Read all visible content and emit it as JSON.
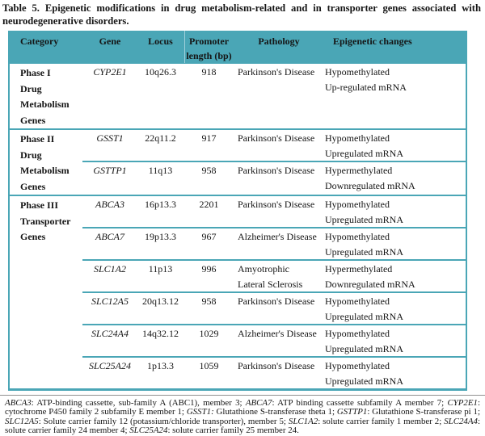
{
  "title": "Table 5. Epigenetic modifications in drug metabolism-related and in transporter genes associated with neurodegenerative disorders.",
  "table": {
    "header": {
      "category": "Category",
      "gene": "Gene",
      "locus": "Locus",
      "promoter_line1": "Promoter",
      "promoter_line2": "length (bp)",
      "pathology": "Pathology",
      "epigenetic": "Epigenetic changes"
    },
    "groups": [
      {
        "category_lines": [
          "Phase I",
          "Drug Metabolism",
          "Genes"
        ],
        "rows": [
          {
            "gene": "CYP2E1",
            "locus": "10q26.3",
            "promoter": "918",
            "pathology_lines": [
              "Parkinson's Disease"
            ],
            "changes_lines": [
              "Hypomethylated",
              "Up-regulated mRNA"
            ]
          }
        ]
      },
      {
        "category_lines": [
          "Phase II",
          "Drug Metabolism",
          "Genes"
        ],
        "rows": [
          {
            "gene": "GSST1",
            "locus": "22q11.2",
            "promoter": "917",
            "pathology_lines": [
              "Parkinson's Disease"
            ],
            "changes_lines": [
              "Hypomethylated",
              "Upregulated mRNA"
            ]
          },
          {
            "gene": "GSTTP1",
            "locus": "11q13",
            "promoter": "958",
            "pathology_lines": [
              "Parkinson's Disease"
            ],
            "changes_lines": [
              "Hypermethylated",
              "Downregulated mRNA"
            ]
          }
        ]
      },
      {
        "category_lines": [
          "Phase III",
          "Transporter",
          "Genes"
        ],
        "rows": [
          {
            "gene": "ABCA3",
            "locus": "16p13.3",
            "promoter": "2201",
            "pathology_lines": [
              "Parkinson's Disease"
            ],
            "changes_lines": [
              "Hypomethylated",
              "Upregulated mRNA"
            ]
          },
          {
            "gene": "ABCA7",
            "locus": "19p13.3",
            "promoter": "967",
            "pathology_lines": [
              "Alzheimer's Disease"
            ],
            "changes_lines": [
              "Hypomethylated",
              "Upregulated mRNA"
            ]
          },
          {
            "gene": "SLC1A2",
            "locus": "11p13",
            "promoter": "996",
            "pathology_lines": [
              "Amyotrophic",
              "Lateral Sclerosis"
            ],
            "changes_lines": [
              "Hypermethylated",
              "Downregulated mRNA"
            ]
          },
          {
            "gene": "SLC12A5",
            "locus": "20q13.12",
            "promoter": "958",
            "pathology_lines": [
              "Parkinson's Disease"
            ],
            "changes_lines": [
              "Hypomethylated",
              "Upregulated mRNA"
            ]
          },
          {
            "gene": "SLC24A4",
            "locus": "14q32.12",
            "promoter": "1029",
            "pathology_lines": [
              "Alzheimer's Disease"
            ],
            "changes_lines": [
              "Hypomethylated",
              "Upregulated mRNA"
            ]
          },
          {
            "gene": "SLC25A24",
            "locus": "1p13.3",
            "promoter": "1059",
            "pathology_lines": [
              "Parkinson's Disease"
            ],
            "changes_lines": [
              "Hypomethylated",
              "Upregulated mRNA"
            ]
          }
        ]
      }
    ]
  },
  "footnote": {
    "segments": [
      {
        "text": "ABCA3",
        "italic": true
      },
      {
        "text": ": ATP-binding cassette, sub-family A (ABC1), member 3; ",
        "italic": false
      },
      {
        "text": "ABCA7",
        "italic": true
      },
      {
        "text": ": ATP binding cassette subfamily A member 7; ",
        "italic": false
      },
      {
        "text": "CYP2E1",
        "italic": true
      },
      {
        "text": ": cytochrome P450 family 2 subfamily E member 1; ",
        "italic": false
      },
      {
        "text": "GSST1:",
        "italic": true
      },
      {
        "text": " Glutathione S-transferase theta 1; ",
        "italic": false
      },
      {
        "text": "GSTTP1",
        "italic": true
      },
      {
        "text": ": Glutathione S-transferase pi 1; ",
        "italic": false
      },
      {
        "text": "SLC12A5",
        "italic": true
      },
      {
        "text": ": Solute carrier family 12 (potassium/chloride transporter), member 5; ",
        "italic": false
      },
      {
        "text": "SLC1A2",
        "italic": true
      },
      {
        "text": ": solute carrier family 1 member 2; ",
        "italic": false
      },
      {
        "text": "SLC24A4",
        "italic": true
      },
      {
        "text": ": solute carrier family 24 member 4; ",
        "italic": false
      },
      {
        "text": "SLC25A24",
        "italic": true
      },
      {
        "text": ": solute carrier family 25 member 24.",
        "italic": false
      }
    ]
  },
  "colors": {
    "accent_teal": "#4aa6b6",
    "header_divider": "#9fd0da",
    "footnote_rule": "#909090",
    "text": "#151515"
  }
}
